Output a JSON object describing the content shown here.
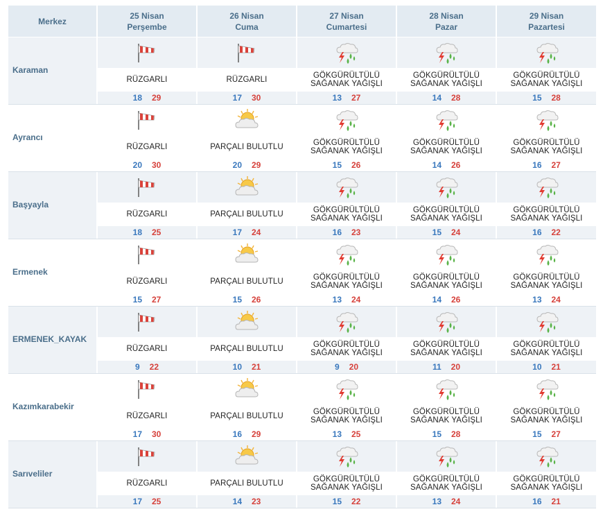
{
  "header": {
    "location_label": "Merkez",
    "days": [
      {
        "date": "25 Nisan",
        "weekday": "Perşembe"
      },
      {
        "date": "26 Nisan",
        "weekday": "Cuma"
      },
      {
        "date": "27 Nisan",
        "weekday": "Cumartesi"
      },
      {
        "date": "28 Nisan",
        "weekday": "Pazar"
      },
      {
        "date": "29 Nisan",
        "weekday": "Pazartesi"
      }
    ]
  },
  "colors": {
    "header_bg": "#e3ebf2",
    "header_text": "#4a6e8a",
    "min_temp": "#3a78bd",
    "max_temp": "#d6413b"
  },
  "rows": [
    {
      "name": "Karaman",
      "days": [
        {
          "icon": "windsock-icon",
          "desc1": "RÜZGARLI",
          "desc2": "",
          "min": "18",
          "max": "29"
        },
        {
          "icon": "windsock-icon",
          "desc1": "RÜZGARLI",
          "desc2": "",
          "min": "17",
          "max": "30"
        },
        {
          "icon": "thunder-rain-icon",
          "desc1": "GÖKGÜRÜLTÜLÜ",
          "desc2": "SAĞANAK YAĞIŞLI",
          "min": "13",
          "max": "27"
        },
        {
          "icon": "thunder-rain-icon",
          "desc1": "GÖKGÜRÜLTÜLÜ",
          "desc2": "SAĞANAK YAĞIŞLI",
          "min": "14",
          "max": "28"
        },
        {
          "icon": "thunder-rain-icon",
          "desc1": "GÖKGÜRÜLTÜLÜ",
          "desc2": "SAĞANAK YAĞIŞLI",
          "min": "15",
          "max": "28"
        }
      ]
    },
    {
      "name": "Ayrancı",
      "days": [
        {
          "icon": "windsock-icon",
          "desc1": "RÜZGARLI",
          "desc2": "",
          "min": "20",
          "max": "30"
        },
        {
          "icon": "partly-cloudy-icon",
          "desc1": "PARÇALI BULUTLU",
          "desc2": "",
          "min": "20",
          "max": "29"
        },
        {
          "icon": "thunder-rain-icon",
          "desc1": "GÖKGÜRÜLTÜLÜ",
          "desc2": "SAĞANAK YAĞIŞLI",
          "min": "15",
          "max": "26"
        },
        {
          "icon": "thunder-rain-icon",
          "desc1": "GÖKGÜRÜLTÜLÜ",
          "desc2": "SAĞANAK YAĞIŞLI",
          "min": "14",
          "max": "26"
        },
        {
          "icon": "thunder-rain-icon",
          "desc1": "GÖKGÜRÜLTÜLÜ",
          "desc2": "SAĞANAK YAĞIŞLI",
          "min": "16",
          "max": "27"
        }
      ]
    },
    {
      "name": "Başyayla",
      "days": [
        {
          "icon": "windsock-icon",
          "desc1": "RÜZGARLI",
          "desc2": "",
          "min": "18",
          "max": "25"
        },
        {
          "icon": "partly-cloudy-icon",
          "desc1": "PARÇALI BULUTLU",
          "desc2": "",
          "min": "17",
          "max": "24"
        },
        {
          "icon": "thunder-rain-icon",
          "desc1": "GÖKGÜRÜLTÜLÜ",
          "desc2": "SAĞANAK YAĞIŞLI",
          "min": "16",
          "max": "23"
        },
        {
          "icon": "thunder-rain-icon",
          "desc1": "GÖKGÜRÜLTÜLÜ",
          "desc2": "SAĞANAK YAĞIŞLI",
          "min": "15",
          "max": "24"
        },
        {
          "icon": "thunder-rain-icon",
          "desc1": "GÖKGÜRÜLTÜLÜ",
          "desc2": "SAĞANAK YAĞIŞLI",
          "min": "16",
          "max": "22"
        }
      ]
    },
    {
      "name": "Ermenek",
      "days": [
        {
          "icon": "windsock-icon",
          "desc1": "RÜZGARLI",
          "desc2": "",
          "min": "15",
          "max": "27"
        },
        {
          "icon": "partly-cloudy-icon",
          "desc1": "PARÇALI BULUTLU",
          "desc2": "",
          "min": "15",
          "max": "26"
        },
        {
          "icon": "thunder-rain-icon",
          "desc1": "GÖKGÜRÜLTÜLÜ",
          "desc2": "SAĞANAK YAĞIŞLI",
          "min": "13",
          "max": "24"
        },
        {
          "icon": "thunder-rain-icon",
          "desc1": "GÖKGÜRÜLTÜLÜ",
          "desc2": "SAĞANAK YAĞIŞLI",
          "min": "14",
          "max": "26"
        },
        {
          "icon": "thunder-rain-icon",
          "desc1": "GÖKGÜRÜLTÜLÜ",
          "desc2": "SAĞANAK YAĞIŞLI",
          "min": "13",
          "max": "24"
        }
      ]
    },
    {
      "name": "ERMENEK_KAYAK",
      "days": [
        {
          "icon": "windsock-icon",
          "desc1": "RÜZGARLI",
          "desc2": "",
          "min": "9",
          "max": "22"
        },
        {
          "icon": "partly-cloudy-icon",
          "desc1": "PARÇALI BULUTLU",
          "desc2": "",
          "min": "10",
          "max": "21"
        },
        {
          "icon": "thunder-rain-icon",
          "desc1": "GÖKGÜRÜLTÜLÜ",
          "desc2": "SAĞANAK YAĞIŞLI",
          "min": "9",
          "max": "20"
        },
        {
          "icon": "thunder-rain-icon",
          "desc1": "GÖKGÜRÜLTÜLÜ",
          "desc2": "SAĞANAK YAĞIŞLI",
          "min": "11",
          "max": "20"
        },
        {
          "icon": "thunder-rain-icon",
          "desc1": "GÖKGÜRÜLTÜLÜ",
          "desc2": "SAĞANAK YAĞIŞLI",
          "min": "10",
          "max": "21"
        }
      ]
    },
    {
      "name": "Kazımkarabekir",
      "days": [
        {
          "icon": "windsock-icon",
          "desc1": "RÜZGARLI",
          "desc2": "",
          "min": "17",
          "max": "30"
        },
        {
          "icon": "partly-cloudy-icon",
          "desc1": "PARÇALI BULUTLU",
          "desc2": "",
          "min": "16",
          "max": "29"
        },
        {
          "icon": "thunder-rain-icon",
          "desc1": "GÖKGÜRÜLTÜLÜ",
          "desc2": "SAĞANAK YAĞIŞLI",
          "min": "13",
          "max": "25"
        },
        {
          "icon": "thunder-rain-icon",
          "desc1": "GÖKGÜRÜLTÜLÜ",
          "desc2": "SAĞANAK YAĞIŞLI",
          "min": "15",
          "max": "28"
        },
        {
          "icon": "thunder-rain-icon",
          "desc1": "GÖKGÜRÜLTÜLÜ",
          "desc2": "SAĞANAK YAĞIŞLI",
          "min": "15",
          "max": "27"
        }
      ]
    },
    {
      "name": "Sarıveliler",
      "days": [
        {
          "icon": "windsock-icon",
          "desc1": "RÜZGARLI",
          "desc2": "",
          "min": "17",
          "max": "25"
        },
        {
          "icon": "partly-cloudy-icon",
          "desc1": "PARÇALI BULUTLU",
          "desc2": "",
          "min": "14",
          "max": "23"
        },
        {
          "icon": "thunder-rain-icon",
          "desc1": "GÖKGÜRÜLTÜLÜ",
          "desc2": "SAĞANAK YAĞIŞLI",
          "min": "15",
          "max": "22"
        },
        {
          "icon": "thunder-rain-icon",
          "desc1": "GÖKGÜRÜLTÜLÜ",
          "desc2": "SAĞANAK YAĞIŞLI",
          "min": "13",
          "max": "24"
        },
        {
          "icon": "thunder-rain-icon",
          "desc1": "GÖKGÜRÜLTÜLÜ",
          "desc2": "SAĞANAK YAĞIŞLI",
          "min": "16",
          "max": "21"
        }
      ]
    }
  ]
}
